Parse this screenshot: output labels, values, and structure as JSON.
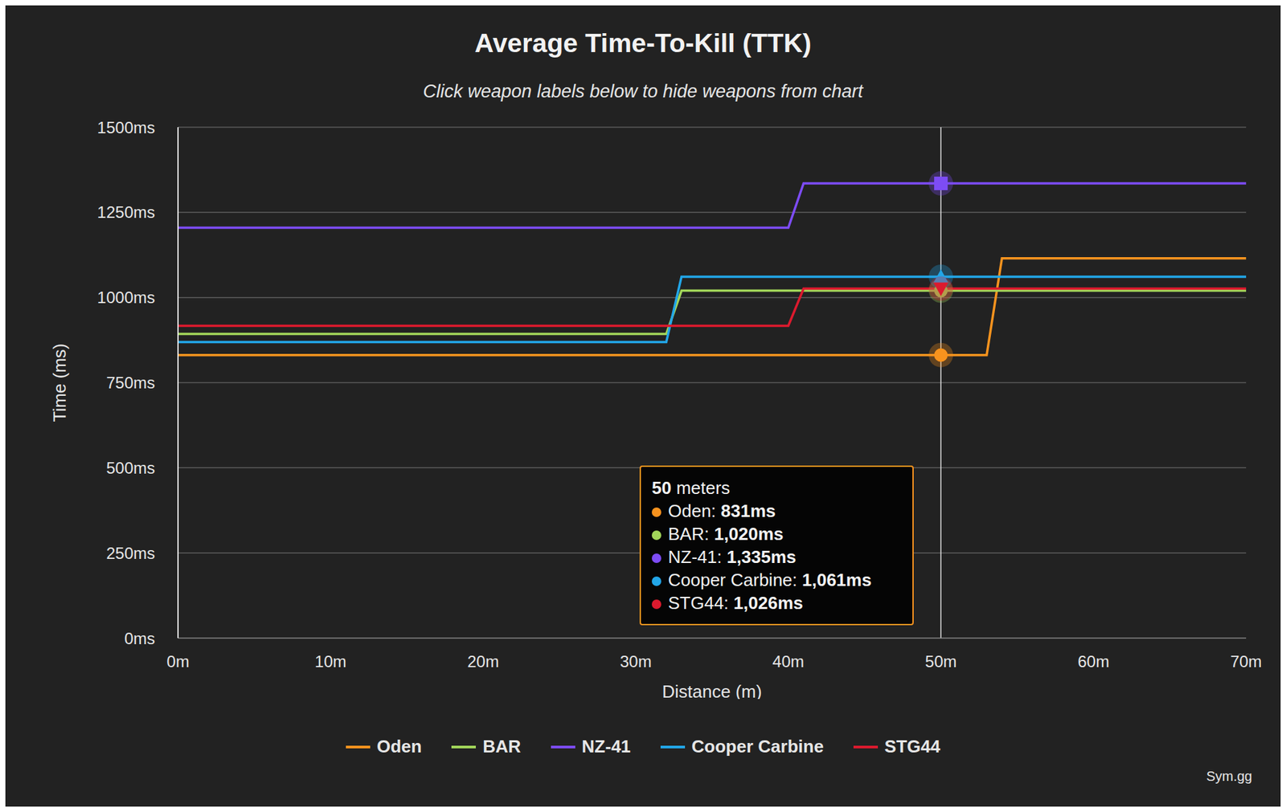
{
  "chart_data": {
    "type": "line",
    "title": "Average Time-To-Kill (TTK)",
    "subtitle": "Click weapon labels below to hide weapons from chart",
    "x_label": "Distance (m)",
    "y_label": "Time (ms)",
    "x": [
      0,
      32,
      33,
      40,
      41,
      50,
      53,
      54,
      70
    ],
    "series": [
      {
        "name": "Oden",
        "color": "#f7931e",
        "marker": "circle",
        "line_style": "solid",
        "values": [
          831,
          831,
          831,
          831,
          831,
          831,
          831,
          1115,
          1115
        ]
      },
      {
        "name": "BAR",
        "color": "#a2d65a",
        "marker": "circle",
        "line_style": "solid",
        "values": [
          893,
          893,
          1020,
          1020,
          1020,
          1020,
          1020,
          1020,
          1020
        ]
      },
      {
        "name": "NZ-41",
        "color": "#7d4cf5",
        "marker": "square",
        "line_style": "solid",
        "values": [
          1205,
          1205,
          1205,
          1205,
          1335,
          1335,
          1335,
          1335,
          1335
        ]
      },
      {
        "name": "Cooper Carbine",
        "color": "#22a6e8",
        "marker": "triangle",
        "line_style": "solid",
        "values": [
          869,
          869,
          1061,
          1061,
          1061,
          1061,
          1061,
          1061,
          1061
        ]
      },
      {
        "name": "STG44",
        "color": "#dc1a2e",
        "marker": "triangle-down",
        "line_style": "solid",
        "values": [
          917,
          917,
          917,
          917,
          1026,
          1026,
          1026,
          1026,
          1026
        ]
      }
    ],
    "xlim": [
      0,
      70
    ],
    "xticks": [
      {
        "value": 0,
        "label": "0m"
      },
      {
        "value": 10,
        "label": "10m"
      },
      {
        "value": 20,
        "label": "20m"
      },
      {
        "value": 30,
        "label": "30m"
      },
      {
        "value": 40,
        "label": "40m"
      },
      {
        "value": 50,
        "label": "50m"
      },
      {
        "value": 60,
        "label": "60m"
      },
      {
        "value": 70,
        "label": "70m"
      }
    ],
    "ylim": [
      0,
      1500
    ],
    "yticks": [
      {
        "value": 0,
        "label": "0ms"
      },
      {
        "value": 250,
        "label": "250ms"
      },
      {
        "value": 500,
        "label": "500ms"
      },
      {
        "value": 750,
        "label": "750ms"
      },
      {
        "value": 1000,
        "label": "1000ms"
      },
      {
        "value": 1250,
        "label": "1250ms"
      },
      {
        "value": 1500,
        "label": "1500ms"
      }
    ],
    "grid": true,
    "legend": "bottom",
    "tooltip": {
      "x": 50,
      "title": "50 meters",
      "entries": [
        {
          "name": "Oden",
          "value": 831,
          "label": "Oden: 831ms"
        },
        {
          "name": "BAR",
          "value": 1020,
          "label": "BAR: 1,020ms"
        },
        {
          "name": "NZ-41",
          "value": 1335,
          "label": "NZ-41: 1,335ms"
        },
        {
          "name": "Cooper Carbine",
          "value": 1061,
          "label": "Cooper Carbine: 1,061ms"
        },
        {
          "name": "STG44",
          "value": 1026,
          "label": "STG44: 1,026ms"
        }
      ]
    },
    "credit": "Sym.gg"
  }
}
